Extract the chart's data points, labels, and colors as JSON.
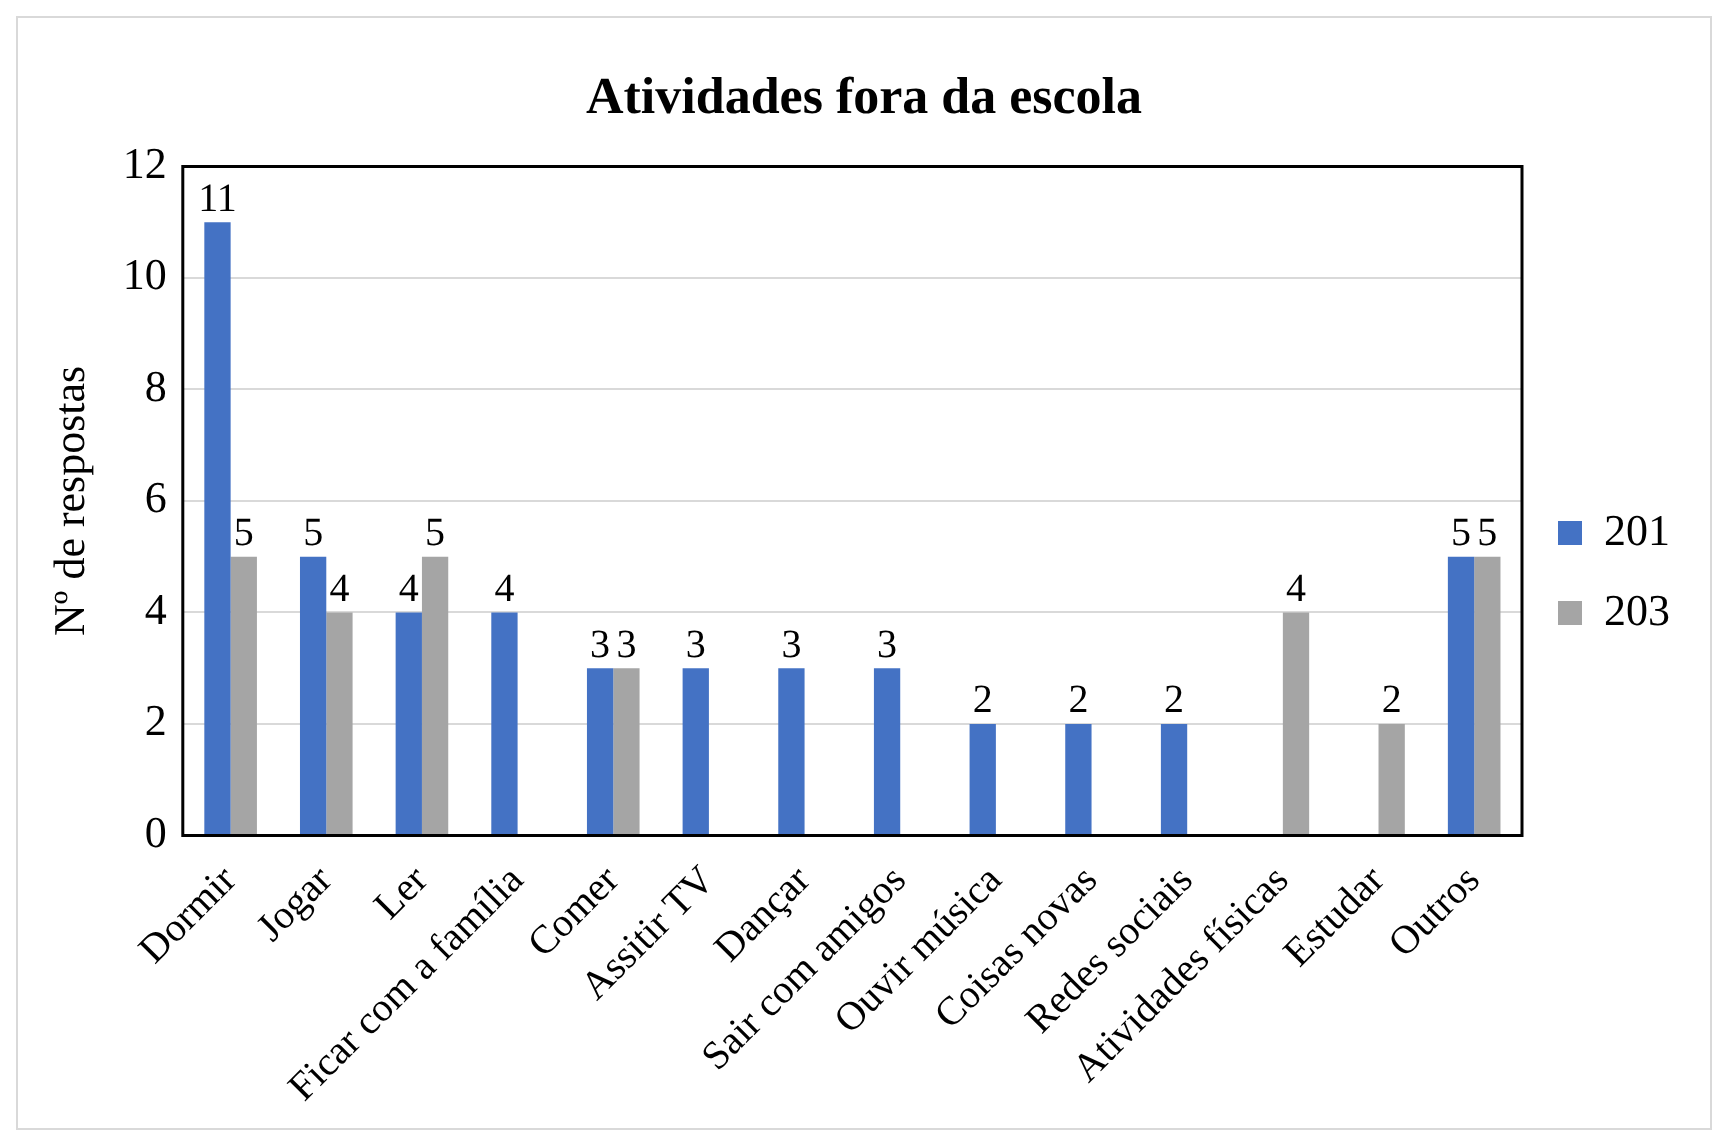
{
  "chart_data": {
    "type": "bar",
    "title": "Atividades fora da escola",
    "ylabel": "Nº de respostas",
    "categories": [
      "Dormir",
      "Jogar",
      "Ler",
      "Ficar com a família",
      "Comer",
      "Assitir TV",
      "Dançar",
      "Sair com amigos",
      "Ouvir música",
      "Coisas novas",
      "Redes sociais",
      "Atividades físicas",
      "Estudar",
      "Outros"
    ],
    "series": [
      {
        "name": "201",
        "color": "#4472c4",
        "values": [
          11,
          5,
          4,
          4,
          3,
          3,
          3,
          3,
          2,
          2,
          2,
          null,
          null,
          5
        ]
      },
      {
        "name": "203",
        "color": "#a5a5a5",
        "values": [
          5,
          4,
          5,
          null,
          3,
          null,
          null,
          null,
          null,
          null,
          null,
          4,
          2,
          5
        ]
      }
    ],
    "ylim": [
      0,
      12
    ],
    "yticks": [
      0,
      2,
      4,
      6,
      8,
      10,
      12
    ],
    "grid": "y",
    "legend": "right",
    "data_labels": true
  }
}
